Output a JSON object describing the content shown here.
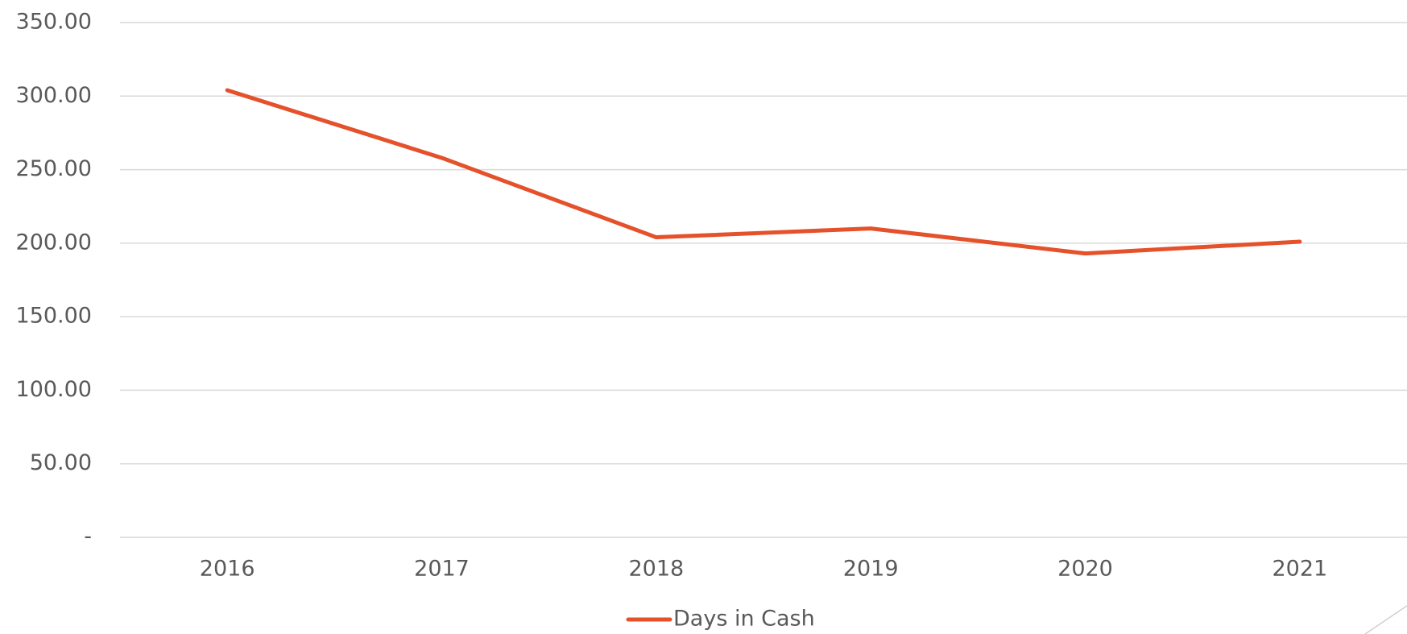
{
  "chart_data": {
    "type": "line",
    "categories": [
      "2016",
      "2017",
      "2018",
      "2019",
      "2020",
      "2021"
    ],
    "series": [
      {
        "name": "Days in Cash",
        "color": "#e4512b",
        "values": [
          304,
          258,
          204,
          210,
          193,
          201
        ]
      }
    ],
    "ylim": [
      0,
      350
    ],
    "yticks": [
      {
        "value": 0,
        "label": "-"
      },
      {
        "value": 50,
        "label": "50.00"
      },
      {
        "value": 100,
        "label": "100.00"
      },
      {
        "value": 150,
        "label": "150.00"
      },
      {
        "value": 200,
        "label": "200.00"
      },
      {
        "value": 250,
        "label": "250.00"
      },
      {
        "value": 300,
        "label": "300.00"
      },
      {
        "value": 350,
        "label": "350.00"
      }
    ],
    "grid": true,
    "legend": "bottom"
  }
}
